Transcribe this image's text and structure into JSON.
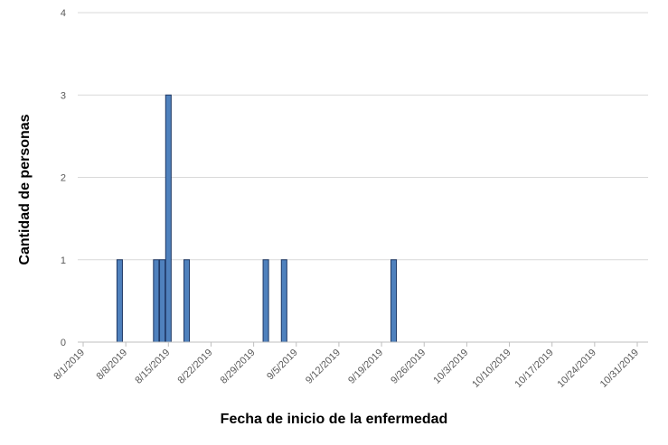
{
  "chart_data": {
    "type": "bar",
    "xlabel": "Fecha de inicio de la enfermedad",
    "ylabel": "Cantidad de personas",
    "ylim": [
      0,
      4
    ],
    "yticks": [
      0,
      1,
      2,
      3,
      4
    ],
    "xrange": [
      "8/1/2019",
      "10/31/2019"
    ],
    "xticks": [
      "8/1/2019",
      "8/8/2019",
      "8/15/2019",
      "8/22/2019",
      "8/29/2019",
      "9/5/2019",
      "9/12/2019",
      "9/19/2019",
      "9/26/2019",
      "10/3/2019",
      "10/10/2019",
      "10/17/2019",
      "10/24/2019",
      "10/31/2019"
    ],
    "grid": true,
    "bar_color": "#4f81bd",
    "bar_edge": "#1f3864",
    "points": [
      {
        "date": "8/7/2019",
        "value": 1
      },
      {
        "date": "8/13/2019",
        "value": 1
      },
      {
        "date": "8/14/2019",
        "value": 1
      },
      {
        "date": "8/15/2019",
        "value": 3
      },
      {
        "date": "8/18/2019",
        "value": 1
      },
      {
        "date": "8/31/2019",
        "value": 1
      },
      {
        "date": "9/3/2019",
        "value": 1
      },
      {
        "date": "9/21/2019",
        "value": 1
      }
    ]
  }
}
